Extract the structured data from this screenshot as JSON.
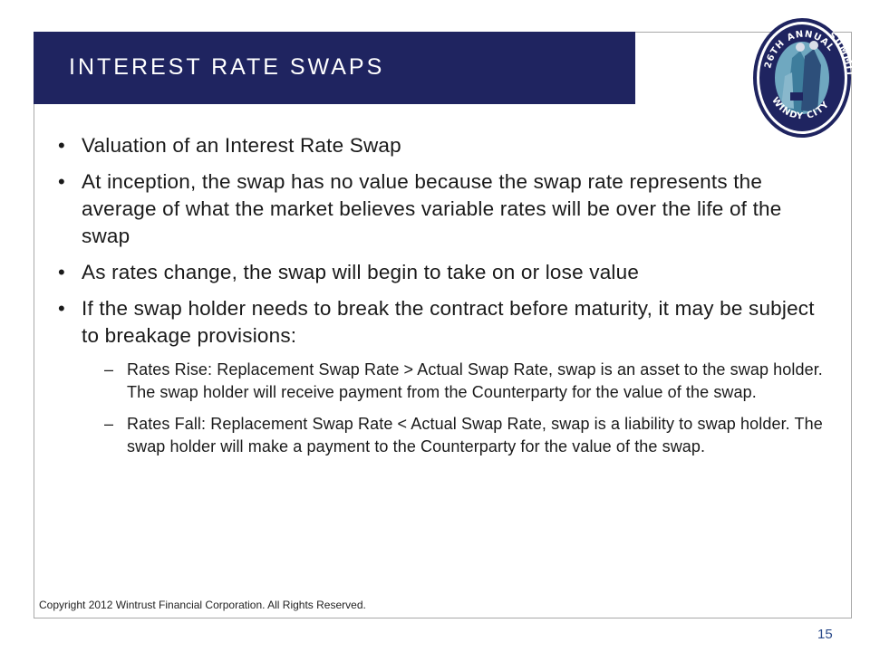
{
  "slide": {
    "title": "INTEREST RATE SWAPS",
    "bullets": [
      "Valuation of an Interest Rate Swap",
      "At inception, the swap has no value because the swap rate represents the average of what the market believes variable rates will be over the life of the swap",
      "As rates change, the swap will begin to take on or lose value",
      "If the swap holder needs to break the contract before maturity, it may be subject to breakage provisions:"
    ],
    "sub_bullets": [
      "Rates Rise: Replacement Swap Rate > Actual Swap Rate, swap is an asset to the swap holder. The swap holder will receive payment from the Counterparty for the value of the swap.",
      "Rates Fall: Replacement Swap Rate < Actual Swap Rate, swap is a liability to swap holder. The swap holder will make a payment to the Counterparty for the value of the swap."
    ],
    "bullet_marker": "•",
    "sub_marker": "–",
    "copyright": "Copyright 2012 Wintrust Financial Corporation. All Rights Reserved.",
    "page_number": "15"
  },
  "logo": {
    "top_text": "26TH ANNUAL",
    "right_text": "SUMMIT",
    "bottom_text": "WINDY CITY",
    "icon": "summit-logo-badge"
  },
  "colors": {
    "title_bar": "#1f2460",
    "logo_ring": "#1f2460",
    "logo_fill": "#3e7d9c",
    "page_number": "#2a4a8a"
  }
}
